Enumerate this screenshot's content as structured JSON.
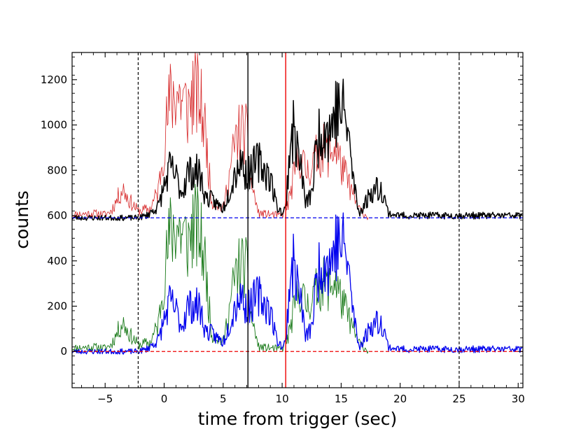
{
  "chart_data": {
    "type": "line",
    "title": "",
    "xlabel": "time from trigger (sec)",
    "ylabel": "counts",
    "xlim": [
      -7.8,
      30.4
    ],
    "ylim": [
      -160,
      1320
    ],
    "x_ticks": [
      -5,
      0,
      5,
      10,
      15,
      20,
      25,
      30
    ],
    "x_tick_labels": [
      "−5",
      "0",
      "5",
      "10",
      "15",
      "20",
      "25",
      "30"
    ],
    "y_ticks": [
      0,
      200,
      400,
      600,
      800,
      1000,
      1200
    ],
    "y_tick_labels": [
      "0",
      "200",
      "400",
      "600",
      "800",
      "1000",
      "1200"
    ],
    "grid": false,
    "colors": {
      "black_curve": "#000000",
      "red_curve": "#d62728",
      "green_curve": "#1a7a1a",
      "blue_curve": "#0000ee",
      "blue_baseline": "#0000ee",
      "red_baseline": "#ee0000",
      "red_vline": "#ee0000"
    },
    "baselines": [
      {
        "color": "blue",
        "style": "dashed",
        "y": 590
      },
      {
        "color": "red",
        "style": "dashed",
        "y": 0
      }
    ],
    "vertical_lines": [
      {
        "x": -2.2,
        "color": "black",
        "style": "dashed"
      },
      {
        "x": 7.1,
        "color": "black",
        "style": "solid"
      },
      {
        "x": 10.3,
        "color": "red",
        "style": "solid"
      },
      {
        "x": 25.0,
        "color": "black",
        "style": "dashed"
      }
    ],
    "series": [
      {
        "color": "red",
        "offset": 590,
        "x_range": [
          -7.8,
          17.3
        ],
        "profile": [
          [
            -7.8,
            15
          ],
          [
            -6,
            20
          ],
          [
            -5,
            15
          ],
          [
            -4.5,
            30
          ],
          [
            -3.5,
            130
          ],
          [
            -3,
            80
          ],
          [
            -2.2,
            30
          ],
          [
            -1.2,
            40
          ],
          [
            -0.5,
            120
          ],
          [
            0,
            330
          ],
          [
            0.5,
            520
          ],
          [
            1,
            560
          ],
          [
            1.5,
            520
          ],
          [
            2,
            480
          ],
          [
            2.5,
            560
          ],
          [
            3,
            520
          ],
          [
            3.5,
            380
          ],
          [
            4,
            80
          ],
          [
            5,
            40
          ],
          [
            5.5,
            180
          ],
          [
            6,
            330
          ],
          [
            6.5,
            390
          ],
          [
            7,
            360
          ],
          [
            7.3,
            170
          ],
          [
            8,
            20
          ],
          [
            10,
            10
          ],
          [
            10.5,
            60
          ],
          [
            11,
            180
          ],
          [
            11.5,
            280
          ],
          [
            12,
            200
          ],
          [
            12.5,
            230
          ],
          [
            13,
            280
          ],
          [
            13.5,
            300
          ],
          [
            14,
            280
          ],
          [
            14.5,
            320
          ],
          [
            15,
            230
          ],
          [
            15.5,
            170
          ],
          [
            16,
            100
          ],
          [
            16.5,
            40
          ],
          [
            17.3,
            0
          ]
        ]
      },
      {
        "color": "black",
        "offset": 590,
        "x_range": [
          -7.8,
          30.4
        ],
        "profile": [
          [
            -7.8,
            0
          ],
          [
            -2.2,
            0
          ],
          [
            -1.5,
            10
          ],
          [
            -0.5,
            50
          ],
          [
            0,
            140
          ],
          [
            0.5,
            220
          ],
          [
            1,
            180
          ],
          [
            1.5,
            110
          ],
          [
            2,
            200
          ],
          [
            3,
            200
          ],
          [
            3.5,
            90
          ],
          [
            4,
            80
          ],
          [
            5,
            40
          ],
          [
            5.5,
            120
          ],
          [
            6,
            200
          ],
          [
            6.5,
            260
          ],
          [
            7,
            180
          ],
          [
            7.5,
            220
          ],
          [
            8,
            250
          ],
          [
            9,
            180
          ],
          [
            9.5,
            60
          ],
          [
            10,
            20
          ],
          [
            10.3,
            40
          ],
          [
            10.7,
            350
          ],
          [
            11,
            380
          ],
          [
            11.5,
            250
          ],
          [
            12,
            60
          ],
          [
            12.5,
            110
          ],
          [
            13,
            350
          ],
          [
            13.5,
            410
          ],
          [
            14,
            380
          ],
          [
            14.5,
            470
          ],
          [
            15,
            480
          ],
          [
            15.5,
            420
          ],
          [
            16,
            180
          ],
          [
            16.5,
            20
          ],
          [
            17,
            60
          ],
          [
            17.5,
            110
          ],
          [
            18,
            130
          ],
          [
            18.5,
            120
          ],
          [
            19,
            20
          ],
          [
            20,
            10
          ],
          [
            22,
            10
          ],
          [
            24,
            10
          ],
          [
            26,
            10
          ],
          [
            28,
            10
          ],
          [
            30.4,
            10
          ]
        ]
      },
      {
        "color": "green",
        "offset": 0,
        "x_range": [
          -7.8,
          17.3
        ],
        "profile": [
          [
            -7.8,
            15
          ],
          [
            -6,
            20
          ],
          [
            -5,
            15
          ],
          [
            -4.5,
            30
          ],
          [
            -3.5,
            130
          ],
          [
            -3,
            80
          ],
          [
            -2.2,
            30
          ],
          [
            -1.2,
            40
          ],
          [
            -0.5,
            120
          ],
          [
            0,
            330
          ],
          [
            0.5,
            520
          ],
          [
            1,
            560
          ],
          [
            1.5,
            520
          ],
          [
            2,
            480
          ],
          [
            2.5,
            560
          ],
          [
            3,
            520
          ],
          [
            3.5,
            380
          ],
          [
            4,
            80
          ],
          [
            5,
            40
          ],
          [
            5.5,
            180
          ],
          [
            6,
            330
          ],
          [
            6.5,
            390
          ],
          [
            7,
            360
          ],
          [
            7.3,
            170
          ],
          [
            8,
            20
          ],
          [
            10,
            10
          ],
          [
            10.5,
            60
          ],
          [
            11,
            180
          ],
          [
            11.5,
            280
          ],
          [
            12,
            200
          ],
          [
            12.5,
            230
          ],
          [
            13,
            280
          ],
          [
            13.5,
            300
          ],
          [
            14,
            280
          ],
          [
            14.5,
            320
          ],
          [
            15,
            230
          ],
          [
            15.5,
            170
          ],
          [
            16,
            100
          ],
          [
            16.5,
            40
          ],
          [
            17.3,
            0
          ]
        ]
      },
      {
        "color": "blue",
        "offset": 0,
        "x_range": [
          -7.8,
          30.4
        ],
        "profile": [
          [
            -7.8,
            0
          ],
          [
            -2.2,
            0
          ],
          [
            -1.5,
            10
          ],
          [
            -0.5,
            50
          ],
          [
            0,
            140
          ],
          [
            0.5,
            220
          ],
          [
            1,
            180
          ],
          [
            1.5,
            110
          ],
          [
            2,
            200
          ],
          [
            3,
            200
          ],
          [
            3.5,
            90
          ],
          [
            4,
            80
          ],
          [
            5,
            40
          ],
          [
            5.5,
            120
          ],
          [
            6,
            200
          ],
          [
            6.5,
            260
          ],
          [
            7,
            180
          ],
          [
            7.5,
            220
          ],
          [
            8,
            250
          ],
          [
            9,
            180
          ],
          [
            9.5,
            60
          ],
          [
            10,
            20
          ],
          [
            10.3,
            40
          ],
          [
            10.7,
            350
          ],
          [
            11,
            380
          ],
          [
            11.5,
            250
          ],
          [
            12,
            60
          ],
          [
            12.5,
            110
          ],
          [
            13,
            350
          ],
          [
            13.5,
            410
          ],
          [
            14,
            380
          ],
          [
            14.5,
            470
          ],
          [
            15,
            480
          ],
          [
            15.5,
            420
          ],
          [
            16,
            180
          ],
          [
            16.5,
            20
          ],
          [
            17,
            60
          ],
          [
            17.5,
            110
          ],
          [
            18,
            130
          ],
          [
            18.5,
            120
          ],
          [
            19,
            20
          ],
          [
            20,
            10
          ],
          [
            22,
            10
          ],
          [
            24,
            10
          ],
          [
            26,
            10
          ],
          [
            28,
            10
          ],
          [
            30.4,
            10
          ]
        ]
      }
    ]
  }
}
